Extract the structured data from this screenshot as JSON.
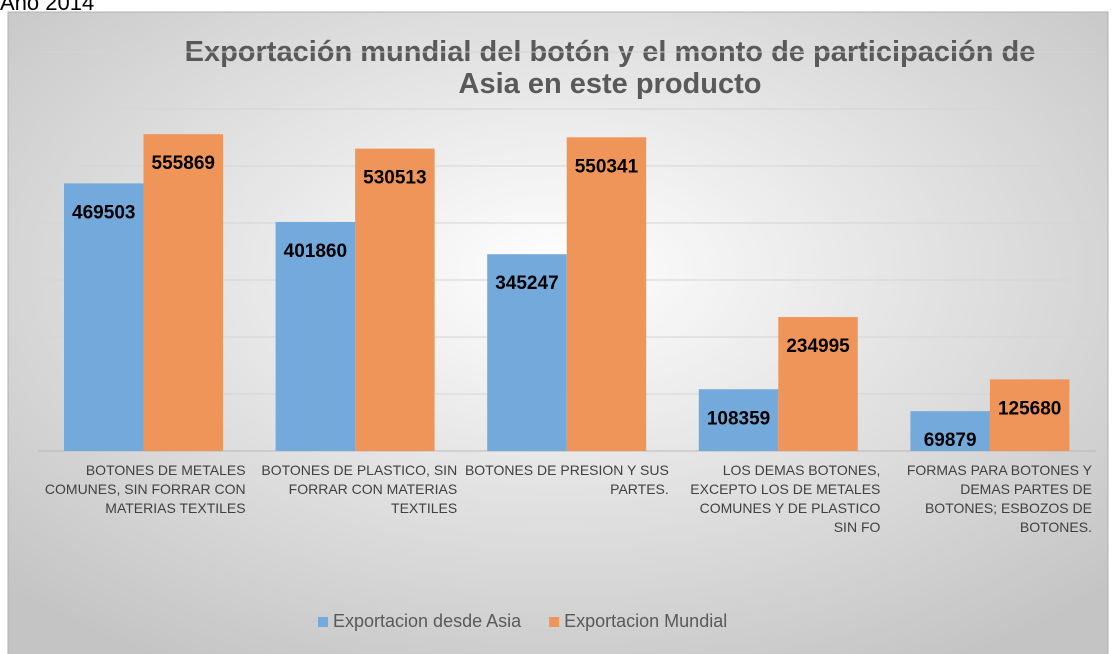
{
  "header": "Año 2014",
  "chart_data": {
    "type": "bar",
    "title": "Exportación mundial del botón y el monto de participación de Asia en este producto",
    "categories": [
      "BOTONES DE METALES COMUNES, SIN FORRAR CON MATERIAS TEXTILES",
      "BOTONES DE PLASTICO, SIN FORRAR CON MATERIAS TEXTILES",
      "BOTONES DE PRESION Y SUS PARTES.",
      "LOS DEMAS BOTONES, EXCEPTO LOS DE METALES COMUNES Y DE PLASTICO SIN FO",
      "FORMAS PARA BOTONES Y DEMAS PARTES DE BOTONES; ESBOZOS DE BOTONES."
    ],
    "series": [
      {
        "name": "Exportacion desde Asia",
        "color": "#74a9dc",
        "values": [
          469503,
          401860,
          345247,
          108359,
          69879
        ]
      },
      {
        "name": "Exportacion Mundial",
        "color": "#f0955a",
        "values": [
          555869,
          530513,
          550341,
          234995,
          125680
        ]
      }
    ],
    "ylim": [
      0,
      700000
    ],
    "yticks": [
      0,
      100000,
      200000,
      300000,
      400000,
      500000,
      600000,
      700000
    ],
    "grid": true,
    "legend": "bottom"
  }
}
